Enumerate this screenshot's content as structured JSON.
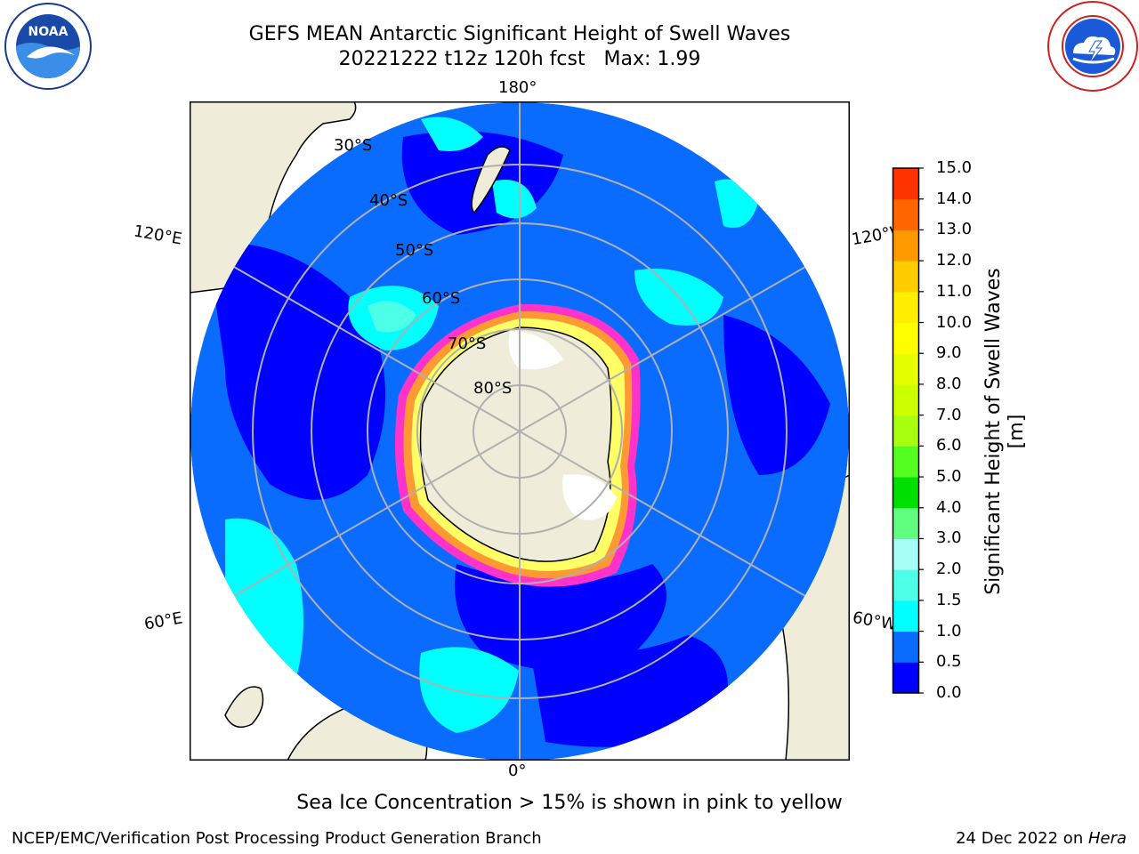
{
  "header": {
    "title_line1": "GEFS MEAN Antarctic Significant Height of Swell Waves",
    "title_line2": "20221222 t12z 120h fcst   Max: 1.99"
  },
  "logos": {
    "left": "noaa-logo",
    "right": "nws-logo"
  },
  "map": {
    "projection": "south-polar-stereographic",
    "longitude_labels": {
      "top": "180°",
      "bottom": "0°",
      "upper_left": "120°E",
      "lower_left": "60°E",
      "upper_right": "120°W",
      "lower_right": "60°W"
    },
    "latitude_labels": [
      "30°S",
      "40°S",
      "50°S",
      "60°S",
      "70°S",
      "80°S"
    ],
    "colors": {
      "land": "#efedd9",
      "ocean_0_0_5": "#0000ff",
      "ocean_0_5_1_0": "#0a6cff",
      "ocean_1_0_1_5": "#00ffff",
      "ocean_1_5_2_0": "#4cffe6",
      "sea_ice_low": "#ff33cc",
      "sea_ice_mid": "#ff9933",
      "sea_ice_high": "#ffff66",
      "grid": "#b0b0b0"
    }
  },
  "colorbar": {
    "title": "Significant Height of Swell Waves [m]",
    "ticks": [
      "0.0",
      "0.5",
      "1.0",
      "1.5",
      "2.0",
      "3.0",
      "4.0",
      "5.0",
      "6.0",
      "7.0",
      "8.0",
      "9.0",
      "10.0",
      "11.0",
      "12.0",
      "13.0",
      "14.0",
      "15.0"
    ],
    "colors": [
      "#0000ff",
      "#0a6cff",
      "#00ffff",
      "#4cffe6",
      "#a6fff5",
      "#60ff80",
      "#00e000",
      "#54ff20",
      "#a8ff10",
      "#ccff00",
      "#e6ff00",
      "#ffff00",
      "#ffee00",
      "#ffcc00",
      "#ff9900",
      "#ff6600",
      "#ff3300",
      "#ff0000"
    ]
  },
  "footer": {
    "note": "Sea Ice Concentration > 15% is shown in pink to yellow",
    "credit": "NCEP/EMC/Verification Post Processing Product Generation Branch",
    "date_prefix": "24 Dec 2022 on ",
    "date_machine": "Hera"
  }
}
